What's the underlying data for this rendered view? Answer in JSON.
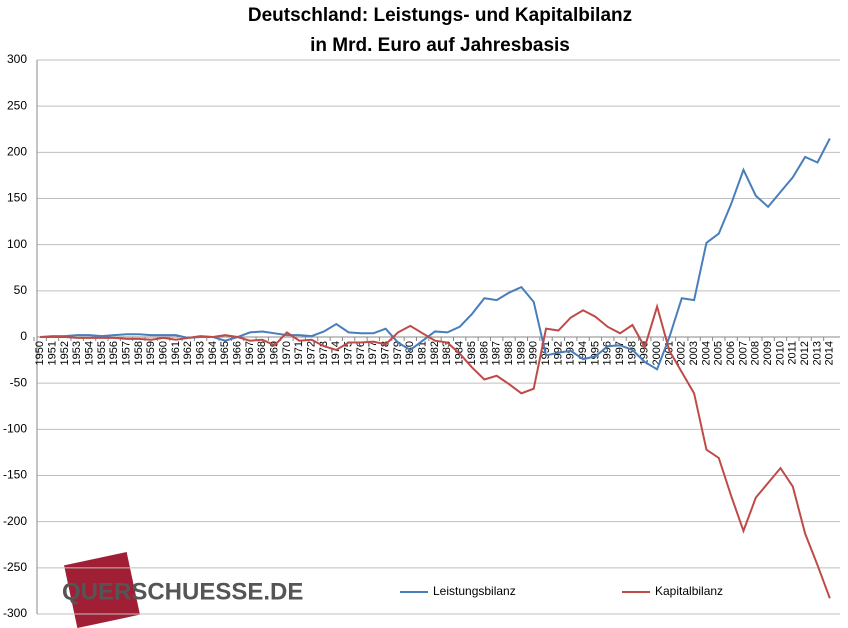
{
  "chart_data": {
    "type": "line",
    "title": "Deutschland: Leistungs- und Kapitalbilanz",
    "subtitle": "in Mrd. Euro auf Jahresbasis",
    "watermark": "QUERSCHUESSE.DE",
    "categories": [
      "1950",
      "1951",
      "1952",
      "1953",
      "1954",
      "1955",
      "1956",
      "1957",
      "1958",
      "1959",
      "1960",
      "1961",
      "1962",
      "1963",
      "1964",
      "1965",
      "1966",
      "1967",
      "1968",
      "1969",
      "1970",
      "1971",
      "1972",
      "1973",
      "1974",
      "1975",
      "1976",
      "1977",
      "1978",
      "1979",
      "1980",
      "1981",
      "1982",
      "1983",
      "1984",
      "1985",
      "1986",
      "1987",
      "1988",
      "1989",
      "1990",
      "1991",
      "1992",
      "1993",
      "1994",
      "1995",
      "1996",
      "1997",
      "1998",
      "1999",
      "2000",
      "2001",
      "2002",
      "2003",
      "2004",
      "2005",
      "2006",
      "2007",
      "2008",
      "2009",
      "2010",
      "2011",
      "2012",
      "2013",
      "2014"
    ],
    "series": [
      {
        "name": "Leistungsbilanz",
        "color": "#4a7ebb",
        "values": [
          0,
          1,
          1,
          2,
          2,
          1,
          2,
          3,
          3,
          2,
          2,
          2,
          -1,
          0,
          0,
          -4,
          0,
          5,
          6,
          4,
          2,
          2,
          1,
          6,
          14,
          5,
          4,
          4,
          9,
          -6,
          -14,
          -4,
          6,
          5,
          11,
          25,
          42,
          40,
          48,
          54,
          38,
          -20,
          -17,
          -15,
          -24,
          -21,
          -10,
          -9,
          -14,
          -27,
          -35,
          0,
          42,
          40,
          102,
          112,
          144,
          181,
          153,
          141,
          157,
          173,
          195,
          189,
          215
        ]
      },
      {
        "name": "Kapitalbilanz",
        "color": "#be4b48",
        "values": [
          0,
          0,
          0,
          -1,
          -1,
          -1,
          -1,
          -2,
          -2,
          -3,
          -1,
          -3,
          -1,
          1,
          0,
          2,
          0,
          -4,
          -3,
          -9,
          5,
          -4,
          -3,
          -10,
          -14,
          -6,
          -6,
          -5,
          -8,
          5,
          12,
          4,
          -4,
          -6,
          -18,
          -33,
          -46,
          -42,
          -51,
          -61,
          -56,
          9,
          7,
          21,
          29,
          22,
          11,
          4,
          13,
          -11,
          33,
          -15,
          -38,
          -61,
          -122,
          -131,
          -172,
          -210,
          -174,
          -158,
          -142,
          -162,
          -213,
          -247,
          -283
        ]
      }
    ],
    "ylim": [
      -300,
      300
    ],
    "yticks": [
      -300,
      -250,
      -200,
      -150,
      -100,
      -50,
      0,
      50,
      100,
      150,
      200,
      250,
      300
    ],
    "grid": true
  }
}
